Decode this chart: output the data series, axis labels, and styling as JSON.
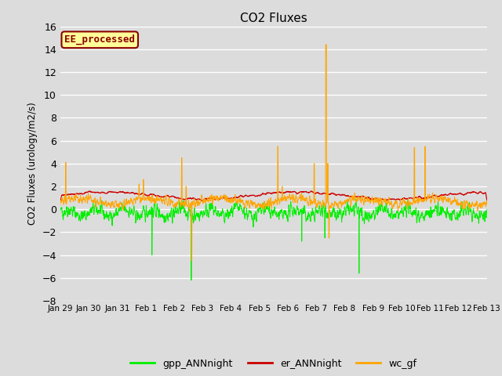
{
  "title": "CO2 Fluxes",
  "ylabel": "CO2 Fluxes (urology/m2/s)",
  "ylim": [
    -8,
    16
  ],
  "yticks": [
    -8,
    -6,
    -4,
    -2,
    0,
    2,
    4,
    6,
    8,
    10,
    12,
    14,
    16
  ],
  "bg_color": "#dcdcdc",
  "plot_bg_color": "#dcdcdc",
  "grid_color": "#ffffff",
  "annotation_text": "EE_processed",
  "annotation_bg": "#ffff99",
  "annotation_border": "#8b0000",
  "legend_entries": [
    "gpp_ANNnight",
    "er_ANNnight",
    "wc_gf"
  ],
  "line_colors": [
    "#00ee00",
    "#cc0000",
    "#ffa500"
  ],
  "tick_labels": [
    "Jan 29",
    "Jan 30",
    "Jan 31",
    "Feb 1",
    "Feb 2",
    "Feb 3",
    "Feb 4",
    "Feb 5",
    "Feb 6",
    "Feb 7",
    "Feb 8",
    "Feb 9",
    "Feb 10",
    "Feb 11",
    "Feb 12",
    "Feb 13"
  ],
  "n_points": 2160,
  "seed": 42
}
